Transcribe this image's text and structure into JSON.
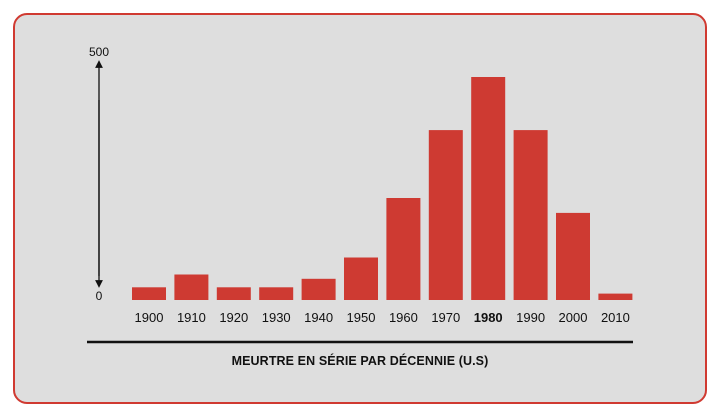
{
  "chart_data": {
    "type": "bar",
    "title": "MEURTRE EN SÉRIE PAR DÉCENNIE (U.S)",
    "xlabel": "",
    "ylabel": "",
    "categories": [
      "1900",
      "1910",
      "1920",
      "1930",
      "1940",
      "1950",
      "1960",
      "1970",
      "1980",
      "1990",
      "2000",
      "2010"
    ],
    "values": [
      30,
      60,
      30,
      30,
      50,
      100,
      240,
      400,
      525,
      400,
      205,
      15
    ],
    "highlighted_category": "1980",
    "ylim": [
      0,
      500
    ],
    "y_axis_labels": {
      "min": "0",
      "max": "500"
    },
    "grid": false,
    "legend": "none",
    "colors": {
      "bar": "#ce3a32",
      "card_background": "#dedede",
      "card_border": "#d03a31",
      "axis": "#111111"
    }
  }
}
